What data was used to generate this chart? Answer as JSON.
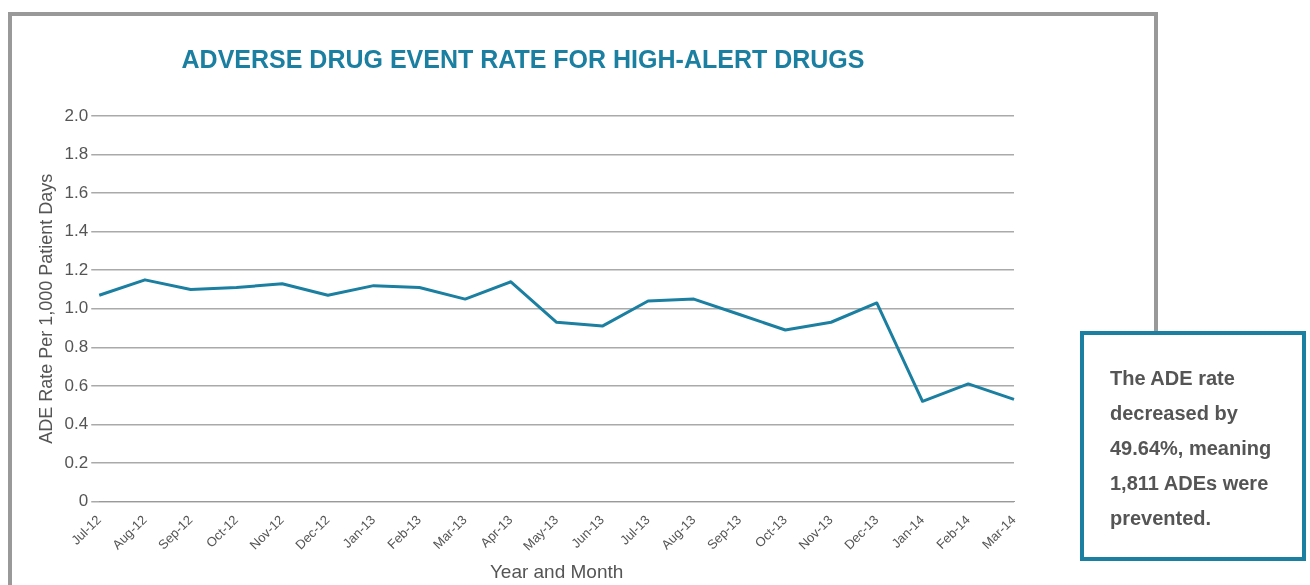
{
  "chart_data": {
    "type": "line",
    "title": "ADVERSE DRUG EVENT RATE FOR HIGH-ALERT DRUGS",
    "xlabel": "Year and Month",
    "ylabel": "ADE Rate Per 1,000 Patient Days",
    "categories": [
      "Jul-12",
      "Aug-12",
      "Sep-12",
      "Oct-12",
      "Nov-12",
      "Dec-12",
      "Jan-13",
      "Feb-13",
      "Mar-13",
      "Apr-13",
      "May-13",
      "Jun-13",
      "Jul-13",
      "Aug-13",
      "Sep-13",
      "Oct-13",
      "Nov-13",
      "Dec-13",
      "Jan-14",
      "Feb-14",
      "Mar-14"
    ],
    "series": [
      {
        "color": "#1a7fa0",
        "values": [
          1.07,
          1.15,
          1.1,
          1.11,
          1.13,
          1.07,
          1.12,
          1.11,
          1.05,
          1.14,
          0.93,
          0.91,
          1.04,
          1.05,
          0.97,
          0.89,
          0.93,
          1.03,
          0.52,
          0.61,
          0.53
        ]
      }
    ],
    "ylim": [
      0,
      2
    ],
    "yticks": [
      {
        "value": 0,
        "label": "0"
      },
      {
        "value": 0.2,
        "label": "0.2"
      },
      {
        "value": 0.4,
        "label": "0.4"
      },
      {
        "value": 0.6,
        "label": "0.6"
      },
      {
        "value": 0.8,
        "label": "0.8"
      },
      {
        "value": 1,
        "label": "1.0"
      },
      {
        "value": 1.2,
        "label": "1.2"
      },
      {
        "value": 1.4,
        "label": "1.4"
      },
      {
        "value": 1.6,
        "label": "1.6"
      },
      {
        "value": 1.8,
        "label": "1.8"
      },
      {
        "value": 2,
        "label": "2.0"
      }
    ],
    "grid": "y",
    "legend": false,
    "marker": "none",
    "line_style": "solid",
    "annotations": [
      "The ADE rate decreased by 49.64%, meaning 1,811 ADEs were prevented."
    ]
  }
}
